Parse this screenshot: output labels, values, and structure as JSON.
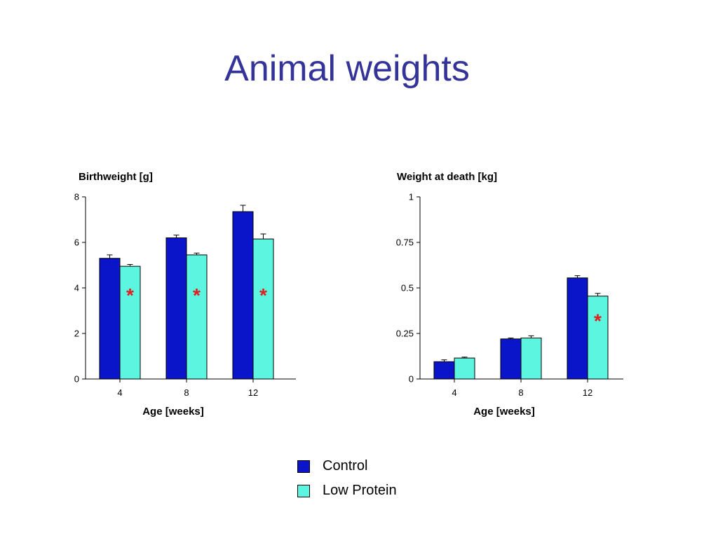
{
  "title": "Animal weights",
  "colors": {
    "control": "#0A14C8",
    "low_protein": "#5CF5E0",
    "star": "#E02020"
  },
  "legend": [
    {
      "label": "Control",
      "color": "#0A14C8"
    },
    {
      "label": "Low Protein",
      "color": "#5CF5E0"
    }
  ],
  "chart_data": [
    {
      "type": "bar",
      "title": "Birthweight [g]",
      "xlabel": "Age [weeks]",
      "ylabel": "",
      "categories": [
        "4",
        "8",
        "12"
      ],
      "ylim": [
        0,
        8
      ],
      "yticks": [
        "0",
        "2",
        "4",
        "6",
        "8"
      ],
      "series": [
        {
          "name": "Control",
          "values": [
            5.3,
            6.2,
            7.35
          ],
          "errors": [
            0.15,
            0.12,
            0.28
          ]
        },
        {
          "name": "Low Protein",
          "values": [
            4.95,
            5.45,
            6.15
          ],
          "errors": [
            0.08,
            0.08,
            0.22
          ]
        }
      ],
      "annotations": [
        {
          "category": "4",
          "series": "Low Protein",
          "text": "*",
          "y": 4.0
        },
        {
          "category": "8",
          "series": "Low Protein",
          "text": "*",
          "y": 4.0
        },
        {
          "category": "12",
          "series": "Low Protein",
          "text": "*",
          "y": 4.0
        }
      ]
    },
    {
      "type": "bar",
      "title": "Weight at death [kg]",
      "xlabel": "Age [weeks]",
      "ylabel": "",
      "categories": [
        "4",
        "8",
        "12"
      ],
      "ylim": [
        0,
        1
      ],
      "yticks": [
        "0",
        "0.25",
        "0.5",
        "0.75",
        "1"
      ],
      "series": [
        {
          "name": "Control",
          "values": [
            0.095,
            0.22,
            0.555
          ],
          "errors": [
            0.01,
            0.005,
            0.012
          ]
        },
        {
          "name": "Low Protein",
          "values": [
            0.115,
            0.225,
            0.455
          ],
          "errors": [
            0.005,
            0.012,
            0.015
          ]
        }
      ],
      "annotations": [
        {
          "category": "12",
          "series": "Low Protein",
          "text": "*",
          "y": 0.36
        }
      ]
    }
  ]
}
